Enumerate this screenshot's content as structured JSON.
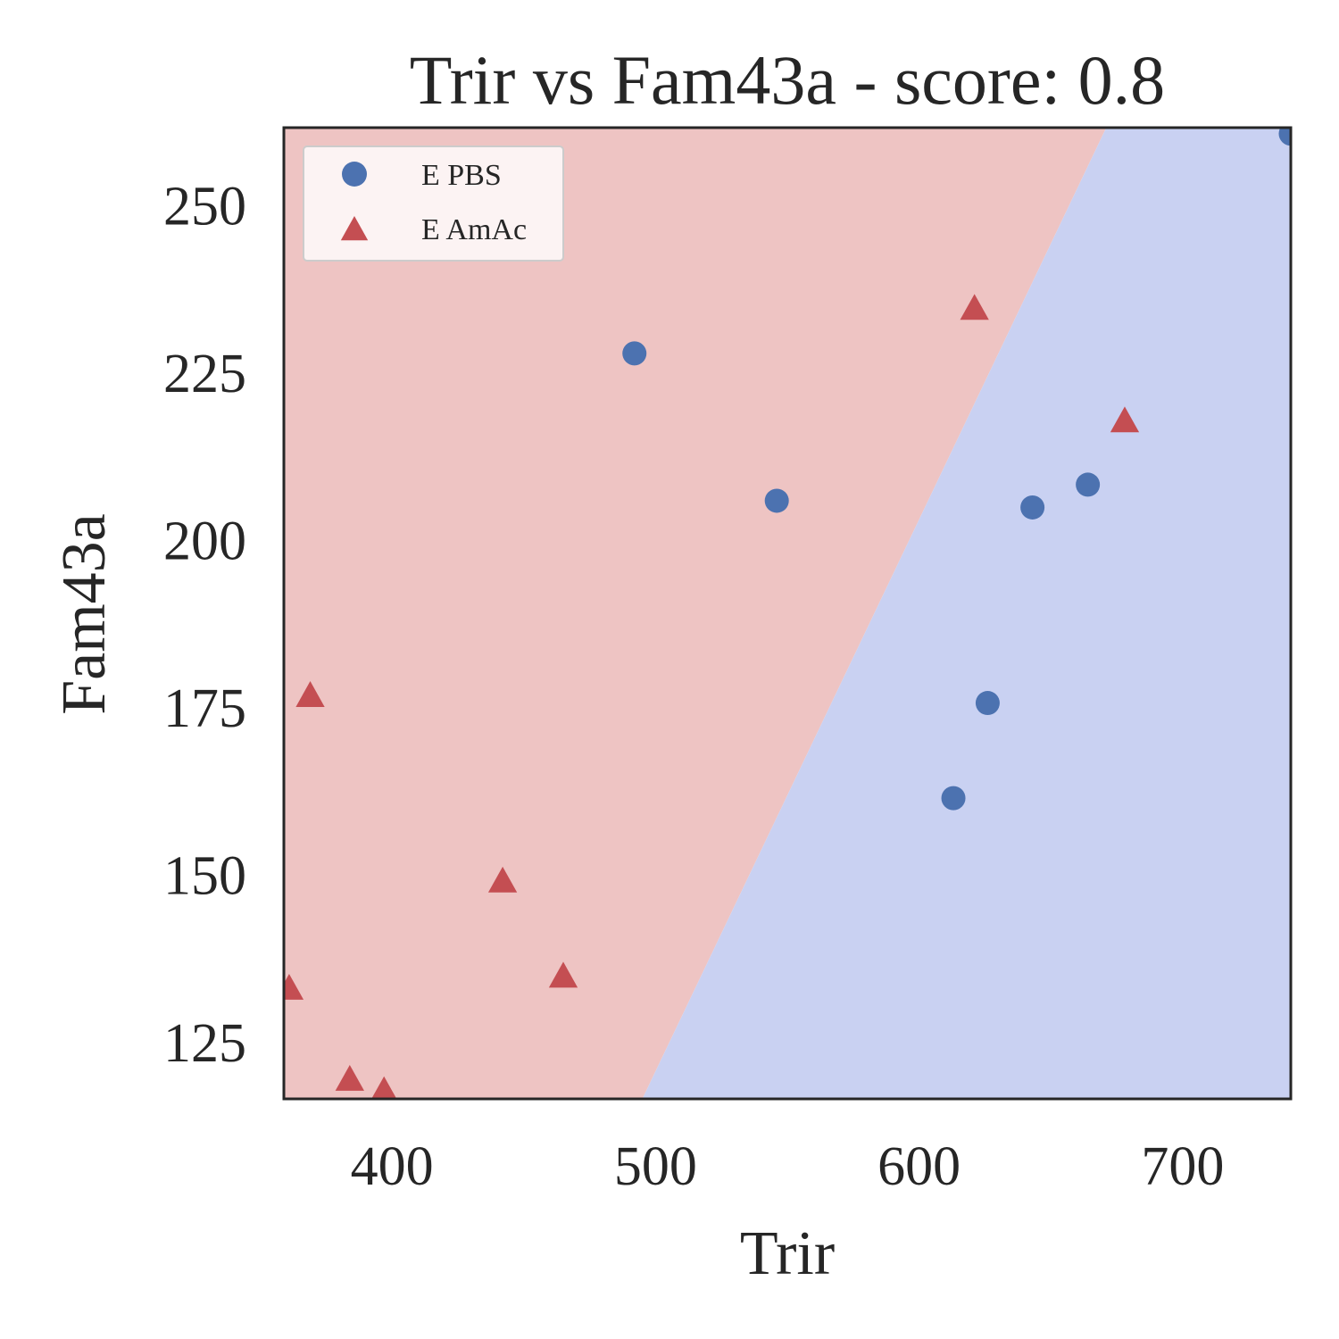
{
  "chart_data": {
    "type": "scatter",
    "title": "Trir vs Fam43a - score: 0.8",
    "xlabel": "Trir",
    "ylabel": "Fam43a",
    "xlim": [
      359,
      741
    ],
    "ylim": [
      116.5,
      261.5
    ],
    "xticks": [
      400,
      500,
      600,
      700
    ],
    "yticks": [
      125,
      150,
      175,
      200,
      225,
      250
    ],
    "grid": false,
    "legend_position": "top-left",
    "background_regions": [
      {
        "class": "E AmAc",
        "color": "#eec4c3",
        "side": "left of boundary"
      },
      {
        "class": "E PBS",
        "color": "#c9d1f2",
        "side": "right of boundary"
      }
    ],
    "decision_boundary": [
      {
        "x": 495,
        "y": 116.5
      },
      {
        "x": 671,
        "y": 261.5
      }
    ],
    "series": [
      {
        "name": "E PBS",
        "marker": "circle",
        "color": "#4c72b0",
        "points": [
          {
            "x": 492,
            "y": 227.8
          },
          {
            "x": 546,
            "y": 205.8
          },
          {
            "x": 643,
            "y": 204.8
          },
          {
            "x": 664,
            "y": 208.2
          },
          {
            "x": 626,
            "y": 175.6
          },
          {
            "x": 613,
            "y": 161.4
          },
          {
            "x": 741,
            "y": 260.6
          }
        ]
      },
      {
        "name": "E AmAc",
        "marker": "triangle",
        "color": "#c44e52",
        "points": [
          {
            "x": 621,
            "y": 234.4
          },
          {
            "x": 678,
            "y": 217.6
          },
          {
            "x": 369,
            "y": 176.6
          },
          {
            "x": 442,
            "y": 148.9
          },
          {
            "x": 465,
            "y": 134.7
          },
          {
            "x": 361,
            "y": 132.9
          },
          {
            "x": 384,
            "y": 119.3
          },
          {
            "x": 397,
            "y": 117.6
          }
        ]
      }
    ]
  }
}
